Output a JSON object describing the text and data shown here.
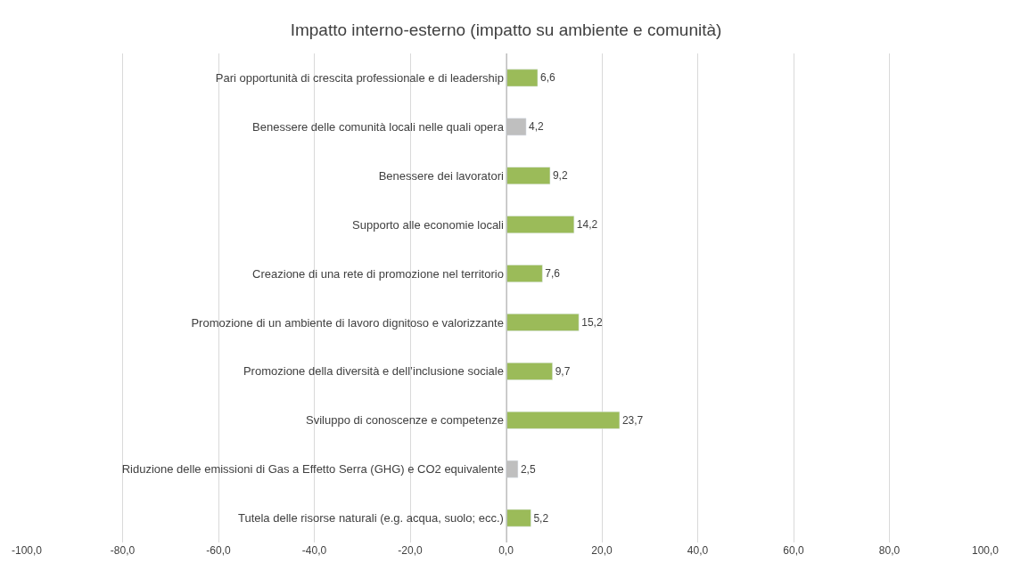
{
  "chart_data": {
    "type": "bar",
    "orientation": "horizontal",
    "title": "Impatto interno-esterno (impatto su ambiente e comunità)",
    "categories": [
      "Pari opportunità di crescita professionale e di leadership",
      "Benessere delle comunità locali nelle quali opera",
      "Benessere dei lavoratori",
      "Supporto alle economie locali",
      "Creazione di una rete di promozione nel territorio",
      "Promozione di un ambiente di lavoro dignitoso e valorizzante",
      "Promozione della diversità e dell’inclusione sociale",
      "Sviluppo di conoscenze e competenze",
      "Riduzione delle emissioni di Gas a Effetto Serra (GHG) e CO2 equivalente",
      "Tutela delle risorse naturali (e.g. acqua, suolo; ecc.)"
    ],
    "values": [
      6.6,
      4.2,
      9.2,
      14.2,
      7.6,
      15.2,
      9.7,
      23.7,
      2.5,
      5.2
    ],
    "value_labels": [
      "6,6",
      "4,2",
      "9,2",
      "14,2",
      "7,6",
      "15,2",
      "9,7",
      "23,7",
      "2,5",
      "5,2"
    ],
    "colors": [
      "#9bbb59",
      "#bfbfbf",
      "#9bbb59",
      "#9bbb59",
      "#9bbb59",
      "#9bbb59",
      "#9bbb59",
      "#9bbb59",
      "#bfbfbf",
      "#9bbb59"
    ],
    "xlim": [
      -100,
      100
    ],
    "xticks": [
      {
        "value": -100,
        "label": "-100,0"
      },
      {
        "value": -80,
        "label": "-80,0"
      },
      {
        "value": -60,
        "label": "-60,0"
      },
      {
        "value": -40,
        "label": "-40,0"
      },
      {
        "value": -20,
        "label": "-20,0"
      },
      {
        "value": 0,
        "label": "0,0"
      },
      {
        "value": 20,
        "label": "20,0"
      },
      {
        "value": 40,
        "label": "40,0"
      },
      {
        "value": 60,
        "label": "60,0"
      },
      {
        "value": 80,
        "label": "80,0"
      },
      {
        "value": 100,
        "label": "100,0"
      }
    ],
    "grid": "x"
  }
}
